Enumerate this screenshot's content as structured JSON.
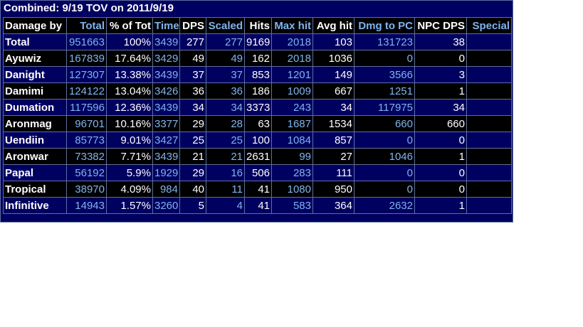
{
  "title": "Combined: 9/19 TOV on 2011/9/19",
  "columns": [
    {
      "label": "Damage by",
      "link": false
    },
    {
      "label": "Total",
      "link": true
    },
    {
      "label": "% of Tot",
      "link": false
    },
    {
      "label": "Time",
      "link": true
    },
    {
      "label": "DPS",
      "link": false
    },
    {
      "label": "Scaled",
      "link": true
    },
    {
      "label": "Hits",
      "link": false
    },
    {
      "label": "Max hit",
      "link": true
    },
    {
      "label": "Avg hit",
      "link": false
    },
    {
      "label": "Dmg to PC",
      "link": true
    },
    {
      "label": "NPC DPS",
      "link": false
    },
    {
      "label": "Special",
      "link": true
    }
  ],
  "rows": [
    [
      "Total",
      "951663",
      "100%",
      "3439",
      "277",
      "277",
      "9169",
      "2018",
      "103",
      "131723",
      "38",
      ""
    ],
    [
      "Ayuwiz",
      "167839",
      "17.64%",
      "3429",
      "49",
      "49",
      "162",
      "2018",
      "1036",
      "0",
      "0",
      ""
    ],
    [
      "Danight",
      "127307",
      "13.38%",
      "3439",
      "37",
      "37",
      "853",
      "1201",
      "149",
      "3566",
      "3",
      ""
    ],
    [
      "Damimi",
      "124122",
      "13.04%",
      "3426",
      "36",
      "36",
      "186",
      "1009",
      "667",
      "1251",
      "1",
      ""
    ],
    [
      "Dumation",
      "117596",
      "12.36%",
      "3439",
      "34",
      "34",
      "3373",
      "243",
      "34",
      "117975",
      "34",
      ""
    ],
    [
      "Aronmag",
      "96701",
      "10.16%",
      "3377",
      "29",
      "28",
      "63",
      "1687",
      "1534",
      "660",
      "660",
      ""
    ],
    [
      "Uendiin",
      "85773",
      "9.01%",
      "3427",
      "25",
      "25",
      "100",
      "1084",
      "857",
      "0",
      "0",
      ""
    ],
    [
      "Aronwar",
      "73382",
      "7.71%",
      "3439",
      "21",
      "21",
      "2631",
      "99",
      "27",
      "1046",
      "1",
      ""
    ],
    [
      "Papal",
      "56192",
      "5.9%",
      "1929",
      "29",
      "16",
      "506",
      "283",
      "111",
      "0",
      "0",
      ""
    ],
    [
      "Tropical",
      "38970",
      "4.09%",
      "984",
      "40",
      "11",
      "41",
      "1080",
      "950",
      "0",
      "0",
      ""
    ],
    [
      "Infinitive",
      "14943",
      "1.57%",
      "3260",
      "5",
      "4",
      "41",
      "583",
      "364",
      "2632",
      "1",
      ""
    ]
  ],
  "colors": {
    "background": "#000060",
    "alt_row": "#000000",
    "link_text": "#7fb4ef",
    "text": "#ffffff",
    "grid": "#5f6fa0"
  }
}
